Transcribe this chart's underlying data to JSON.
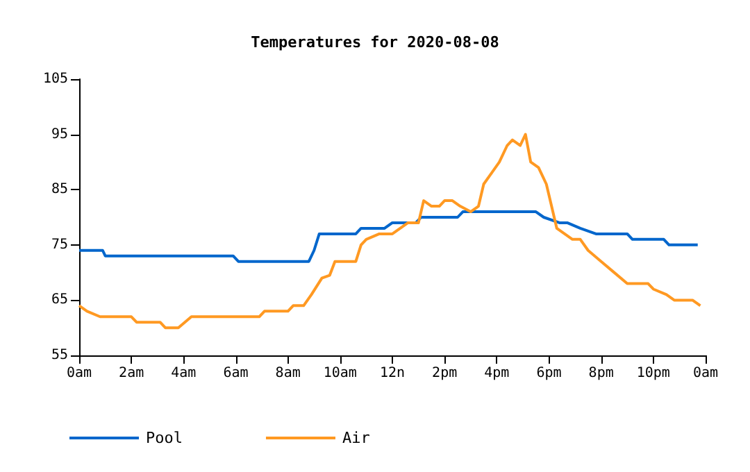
{
  "chart_data": {
    "type": "line",
    "title": "Temperatures for 2020-08-08",
    "xlim": [
      "2020-08-08T00:00",
      "2020-08-09T00:00"
    ],
    "xticks": [
      {
        "value": "2020-08-08T00:00",
        "label": "0am"
      },
      {
        "value": "2020-08-08T02:00",
        "label": "2am"
      },
      {
        "value": "2020-08-08T04:00",
        "label": "4am"
      },
      {
        "value": "2020-08-08T06:00",
        "label": "6am"
      },
      {
        "value": "2020-08-08T08:00",
        "label": "8am"
      },
      {
        "value": "2020-08-08T10:00",
        "label": "10am"
      },
      {
        "value": "2020-08-08T12:00",
        "label": "12n"
      },
      {
        "value": "2020-08-08T14:00",
        "label": "2pm"
      },
      {
        "value": "2020-08-08T16:00",
        "label": "4pm"
      },
      {
        "value": "2020-08-08T18:00",
        "label": "6pm"
      },
      {
        "value": "2020-08-08T20:00",
        "label": "8pm"
      },
      {
        "value": "2020-08-08T22:00",
        "label": "10pm"
      },
      {
        "value": "2020-08-09T00:00",
        "label": "0am"
      }
    ],
    "ylim": [
      55,
      105
    ],
    "yticks": [
      55,
      65,
      75,
      85,
      95,
      105
    ],
    "grid": false,
    "legend": "bottom left",
    "marker": "none",
    "line_style": "solid",
    "series": [
      {
        "name": "Pool",
        "color": "#0066cc",
        "x": [
          "2020-08-08T00:00",
          "2020-08-08T00:54",
          "2020-08-08T01:00",
          "2020-08-08T05:54",
          "2020-08-08T06:06",
          "2020-08-08T08:48",
          "2020-08-08T09:00",
          "2020-08-08T09:12",
          "2020-08-08T10:36",
          "2020-08-08T10:48",
          "2020-08-08T11:42",
          "2020-08-08T12:00",
          "2020-08-08T12:54",
          "2020-08-08T13:06",
          "2020-08-08T14:30",
          "2020-08-08T14:42",
          "2020-08-08T17:30",
          "2020-08-08T17:48",
          "2020-08-08T18:24",
          "2020-08-08T18:42",
          "2020-08-08T19:12",
          "2020-08-08T19:48",
          "2020-08-08T21:00",
          "2020-08-08T21:12",
          "2020-08-08T22:24",
          "2020-08-08T22:36",
          "2020-08-08T23:42"
        ],
        "values": [
          74,
          74,
          73,
          73,
          72,
          72,
          74,
          77,
          77,
          78,
          78,
          79,
          79,
          80,
          80,
          81,
          81,
          80,
          79,
          79,
          78,
          77,
          77,
          76,
          76,
          75,
          75
        ]
      },
      {
        "name": "Air",
        "color": "#ff9922",
        "x": [
          "2020-08-08T00:00",
          "2020-08-08T00:18",
          "2020-08-08T00:48",
          "2020-08-08T02:00",
          "2020-08-08T02:12",
          "2020-08-08T03:06",
          "2020-08-08T03:18",
          "2020-08-08T03:48",
          "2020-08-08T04:18",
          "2020-08-08T06:54",
          "2020-08-08T07:06",
          "2020-08-08T08:00",
          "2020-08-08T08:12",
          "2020-08-08T08:36",
          "2020-08-08T08:54",
          "2020-08-08T09:18",
          "2020-08-08T09:36",
          "2020-08-08T09:48",
          "2020-08-08T10:36",
          "2020-08-08T10:48",
          "2020-08-08T11:00",
          "2020-08-08T11:30",
          "2020-08-08T12:00",
          "2020-08-08T12:18",
          "2020-08-08T12:36",
          "2020-08-08T13:00",
          "2020-08-08T13:12",
          "2020-08-08T13:30",
          "2020-08-08T13:48",
          "2020-08-08T14:00",
          "2020-08-08T14:18",
          "2020-08-08T14:36",
          "2020-08-08T15:00",
          "2020-08-08T15:18",
          "2020-08-08T15:30",
          "2020-08-08T15:48",
          "2020-08-08T16:06",
          "2020-08-08T16:24",
          "2020-08-08T16:36",
          "2020-08-08T16:54",
          "2020-08-08T17:06",
          "2020-08-08T17:18",
          "2020-08-08T17:36",
          "2020-08-08T17:54",
          "2020-08-08T18:06",
          "2020-08-08T18:18",
          "2020-08-08T18:36",
          "2020-08-08T18:54",
          "2020-08-08T19:12",
          "2020-08-08T19:30",
          "2020-08-08T20:00",
          "2020-08-08T20:30",
          "2020-08-08T21:00",
          "2020-08-08T21:48",
          "2020-08-08T22:00",
          "2020-08-08T22:30",
          "2020-08-08T22:48",
          "2020-08-08T23:30",
          "2020-08-08T23:48"
        ],
        "values": [
          64,
          63,
          62,
          62,
          61,
          61,
          60,
          60,
          62,
          62,
          63,
          63,
          64,
          64,
          66,
          69,
          69.5,
          72,
          72,
          75,
          76,
          77,
          77,
          78,
          79,
          79,
          83,
          82,
          82,
          83,
          83,
          82,
          81,
          82,
          86,
          88,
          90,
          93,
          94,
          93,
          95,
          90,
          89,
          86,
          82,
          78,
          77,
          76,
          76,
          74,
          72,
          70,
          68,
          68,
          67,
          66,
          65,
          65,
          64
        ]
      }
    ]
  }
}
